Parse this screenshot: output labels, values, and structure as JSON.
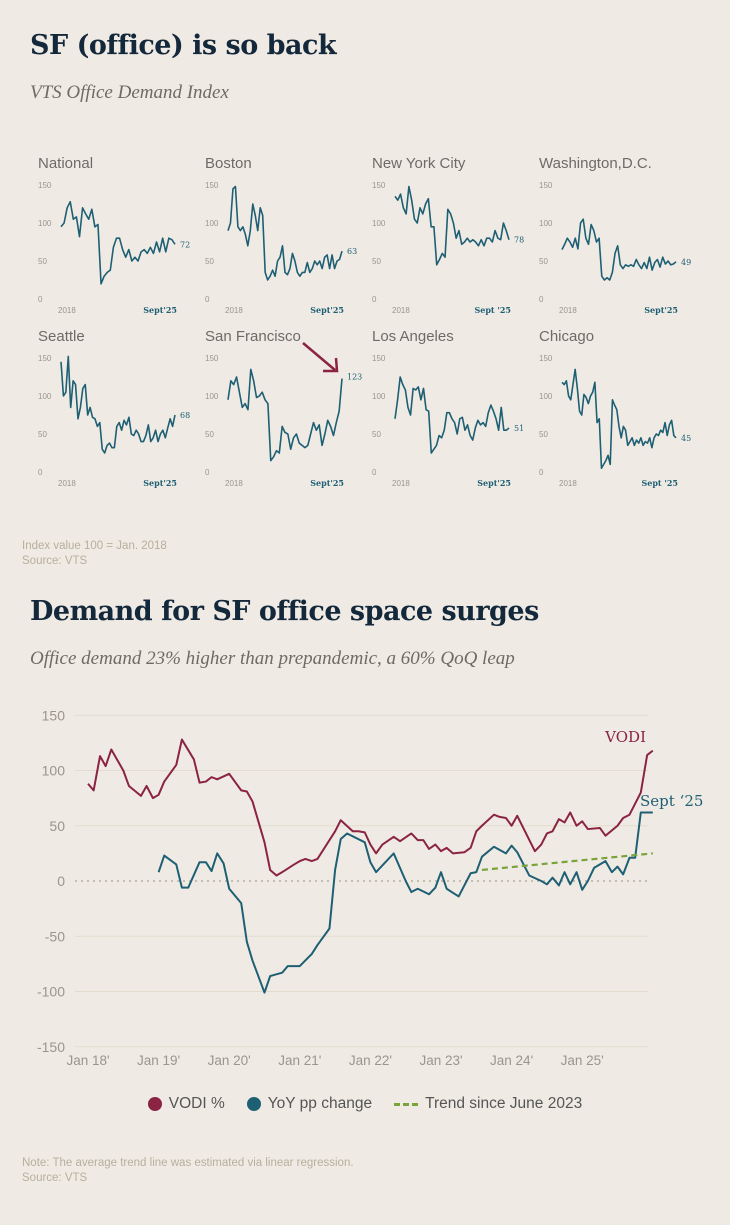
{
  "colors": {
    "teal": "#1e5f74",
    "red": "#8b2343",
    "green": "#7aa33a",
    "grid": "#e2dccf",
    "axis_text": "#9a958d"
  },
  "section1": {
    "title": "SF (office) is so back",
    "subtitle": "VTS Office Demand Index",
    "note": "Index value 100 = Jan. 2018",
    "source": "Source: VTS"
  },
  "section2": {
    "title": "Demand for SF office space surges",
    "subtitle": "Office demand 23% higher than prepandemic, a 60% QoQ leap",
    "note": "Note: The average trend line was estimated via linear regression.",
    "source": "Source: VTS"
  },
  "chart_data": [
    {
      "type": "line",
      "title": "VTS Office Demand Index (small multiples)",
      "ylim": [
        0,
        150
      ],
      "yticks": [
        150,
        100,
        50,
        0
      ],
      "x_start_label": "2018",
      "x_end_label": "Sept'25",
      "panels": [
        {
          "name": "National",
          "end_label": "72",
          "values": [
            95,
            100,
            120,
            128,
            105,
            108,
            82,
            120,
            112,
            105,
            118,
            95,
            98,
            20,
            30,
            35,
            38,
            68,
            80,
            80,
            65,
            55,
            65,
            50,
            55,
            50,
            62,
            65,
            60,
            68,
            60,
            75,
            62,
            80,
            62,
            80,
            78,
            72
          ]
        },
        {
          "name": "Boston",
          "end_label": "63",
          "values": [
            90,
            100,
            145,
            148,
            95,
            90,
            95,
            85,
            70,
            90,
            125,
            110,
            90,
            120,
            110,
            35,
            25,
            30,
            38,
            30,
            50,
            55,
            70,
            35,
            32,
            40,
            60,
            50,
            35,
            30,
            35,
            35,
            48,
            35,
            40,
            50,
            45,
            50,
            40,
            55,
            58,
            40,
            58,
            40,
            50,
            52,
            63
          ]
        },
        {
          "name": "New York City",
          "end_label": "78",
          "x_end_label": "Sept '25",
          "values": [
            135,
            130,
            138,
            120,
            112,
            148,
            130,
            105,
            100,
            120,
            112,
            125,
            132,
            95,
            95,
            45,
            52,
            60,
            55,
            118,
            112,
            100,
            80,
            90,
            72,
            75,
            80,
            75,
            78,
            75,
            70,
            78,
            70,
            80,
            80,
            75,
            90,
            80,
            78,
            100,
            90,
            78
          ]
        },
        {
          "name": "Washington,D.C.",
          "end_label": "49",
          "values": [
            65,
            72,
            80,
            75,
            68,
            80,
            66,
            100,
            105,
            80,
            72,
            98,
            90,
            75,
            80,
            30,
            25,
            28,
            25,
            35,
            60,
            70,
            45,
            40,
            45,
            43,
            45,
            43,
            52,
            45,
            40,
            48,
            40,
            55,
            38,
            48,
            52,
            42,
            55,
            46,
            50,
            45,
            46,
            49
          ]
        },
        {
          "name": "Seattle",
          "end_label": "68",
          "values": [
            145,
            100,
            105,
            152,
            85,
            120,
            115,
            70,
            85,
            110,
            115,
            75,
            85,
            72,
            70,
            60,
            65,
            30,
            25,
            35,
            38,
            32,
            32,
            60,
            65,
            55,
            68,
            62,
            72,
            50,
            48,
            55,
            50,
            40,
            40,
            48,
            62,
            40,
            45,
            55,
            40,
            50,
            55,
            45,
            58,
            70,
            60,
            75
          ]
        },
        {
          "name": "San Francisco",
          "end_label": "123",
          "highlight": true,
          "values": [
            95,
            120,
            115,
            125,
            105,
            85,
            90,
            82,
            135,
            120,
            98,
            100,
            105,
            95,
            90,
            15,
            20,
            28,
            25,
            60,
            52,
            50,
            30,
            45,
            50,
            38,
            35,
            32,
            35,
            50,
            65,
            55,
            62,
            35,
            50,
            68,
            60,
            48,
            65,
            80,
            123
          ]
        },
        {
          "name": "Los Angeles",
          "end_label": "51",
          "values": [
            70,
            95,
            125,
            115,
            108,
            85,
            75,
            110,
            108,
            112,
            95,
            110,
            82,
            80,
            25,
            30,
            35,
            48,
            45,
            55,
            78,
            78,
            70,
            65,
            50,
            70,
            72,
            55,
            62,
            48,
            42,
            58,
            68,
            62,
            65,
            60,
            78,
            88,
            80,
            70,
            55,
            85,
            55,
            55,
            58
          ]
        },
        {
          "name": "Chicago",
          "end_label": "45",
          "x_end_label": "Sept '25",
          "values": [
            118,
            115,
            120,
            100,
            95,
            115,
            135,
            110,
            80,
            75,
            102,
            98,
            90,
            100,
            105,
            118,
            65,
            70,
            5,
            10,
            15,
            22,
            10,
            95,
            88,
            82,
            60,
            45,
            60,
            55,
            35,
            40,
            45,
            35,
            42,
            38,
            45,
            35,
            40,
            38,
            45,
            32,
            45,
            50,
            48,
            55,
            52,
            65,
            48,
            62,
            68,
            48,
            45
          ]
        }
      ]
    },
    {
      "type": "line",
      "title": "Demand for SF office space surges",
      "ylim": [
        -150,
        150
      ],
      "yticks": [
        150,
        100,
        50,
        0,
        -50,
        -100,
        -150
      ],
      "xlim": [
        2018,
        2025.92
      ],
      "xticks": [
        {
          "x": 2018,
          "label": "Jan 18'"
        },
        {
          "x": 2019,
          "label": "Jan 19'"
        },
        {
          "x": 2020,
          "label": "Jan 20'"
        },
        {
          "x": 2021,
          "label": "Jan 21'"
        },
        {
          "x": 2022,
          "label": "Jan 22'"
        },
        {
          "x": 2023,
          "label": "Jan 23'"
        },
        {
          "x": 2024,
          "label": "Jan 24'"
        },
        {
          "x": 2025,
          "label": "Jan 25'"
        }
      ],
      "annotations": {
        "vodi": "VODI",
        "sept": "Sept ‘25"
      },
      "legend": [
        "VODI %",
        "YoY pp change",
        "Trend since June 2023"
      ],
      "legend_position": "bottom",
      "series": [
        {
          "name": "VODI %",
          "color": "#8b2343",
          "points": [
            [
              2018.0,
              88
            ],
            [
              2018.08,
              82
            ],
            [
              2018.17,
              113
            ],
            [
              2018.25,
              104
            ],
            [
              2018.33,
              119
            ],
            [
              2018.5,
              100
            ],
            [
              2018.58,
              86
            ],
            [
              2018.75,
              77
            ],
            [
              2018.83,
              86
            ],
            [
              2018.92,
              75
            ],
            [
              2019.0,
              78
            ],
            [
              2019.08,
              90
            ],
            [
              2019.25,
              105
            ],
            [
              2019.33,
              128
            ],
            [
              2019.5,
              110
            ],
            [
              2019.58,
              89
            ],
            [
              2019.67,
              90
            ],
            [
              2019.75,
              94
            ],
            [
              2019.83,
              92
            ],
            [
              2020.0,
              97
            ],
            [
              2020.17,
              82
            ],
            [
              2020.25,
              81
            ],
            [
              2020.33,
              72
            ],
            [
              2020.5,
              35
            ],
            [
              2020.58,
              10
            ],
            [
              2020.67,
              5
            ],
            [
              2020.75,
              8
            ],
            [
              2020.92,
              15
            ],
            [
              2021.0,
              18
            ],
            [
              2021.08,
              20
            ],
            [
              2021.17,
              18
            ],
            [
              2021.25,
              20
            ],
            [
              2021.5,
              45
            ],
            [
              2021.58,
              55
            ],
            [
              2021.75,
              45
            ],
            [
              2021.83,
              45
            ],
            [
              2021.92,
              44
            ],
            [
              2022.0,
              33
            ],
            [
              2022.08,
              25
            ],
            [
              2022.17,
              33
            ],
            [
              2022.33,
              40
            ],
            [
              2022.42,
              36
            ],
            [
              2022.58,
              43
            ],
            [
              2022.67,
              37
            ],
            [
              2022.75,
              37
            ],
            [
              2022.83,
              29
            ],
            [
              2022.92,
              33
            ],
            [
              2023.0,
              27
            ],
            [
              2023.08,
              30
            ],
            [
              2023.17,
              25
            ],
            [
              2023.33,
              26
            ],
            [
              2023.42,
              30
            ],
            [
              2023.5,
              45
            ],
            [
              2023.58,
              50
            ],
            [
              2023.75,
              60
            ],
            [
              2023.83,
              58
            ],
            [
              2023.92,
              57
            ],
            [
              2024.0,
              50
            ],
            [
              2024.08,
              59
            ],
            [
              2024.33,
              27
            ],
            [
              2024.42,
              33
            ],
            [
              2024.5,
              43
            ],
            [
              2024.58,
              45
            ],
            [
              2024.67,
              56
            ],
            [
              2024.75,
              53
            ],
            [
              2024.83,
              62
            ],
            [
              2024.92,
              50
            ],
            [
              2025.0,
              54
            ],
            [
              2025.08,
              47
            ],
            [
              2025.25,
              48
            ],
            [
              2025.33,
              41
            ],
            [
              2025.5,
              50
            ],
            [
              2025.58,
              57
            ],
            [
              2025.67,
              60
            ],
            [
              2025.83,
              80
            ],
            [
              2025.92,
              114
            ],
            [
              2026.0,
              118
            ]
          ]
        },
        {
          "name": "YoY pp change",
          "color": "#1e5f74",
          "points": [
            [
              2019.0,
              8
            ],
            [
              2019.08,
              23
            ],
            [
              2019.25,
              15
            ],
            [
              2019.33,
              -6
            ],
            [
              2019.42,
              -6
            ],
            [
              2019.58,
              17
            ],
            [
              2019.67,
              17
            ],
            [
              2019.75,
              9
            ],
            [
              2019.83,
              25
            ],
            [
              2019.92,
              16
            ],
            [
              2020.0,
              -7
            ],
            [
              2020.17,
              -20
            ],
            [
              2020.25,
              -55
            ],
            [
              2020.33,
              -72
            ],
            [
              2020.5,
              -101
            ],
            [
              2020.58,
              -86
            ],
            [
              2020.75,
              -83
            ],
            [
              2020.83,
              -77
            ],
            [
              2021.0,
              -77
            ],
            [
              2021.17,
              -66
            ],
            [
              2021.25,
              -58
            ],
            [
              2021.42,
              -43
            ],
            [
              2021.5,
              10
            ],
            [
              2021.58,
              38
            ],
            [
              2021.67,
              43
            ],
            [
              2021.92,
              35
            ],
            [
              2022.0,
              17
            ],
            [
              2022.08,
              8
            ],
            [
              2022.33,
              25
            ],
            [
              2022.5,
              0
            ],
            [
              2022.58,
              -10
            ],
            [
              2022.67,
              -7
            ],
            [
              2022.83,
              -12
            ],
            [
              2022.92,
              -6
            ],
            [
              2023.0,
              8
            ],
            [
              2023.08,
              -7
            ],
            [
              2023.25,
              -14
            ],
            [
              2023.42,
              7
            ],
            [
              2023.5,
              8
            ],
            [
              2023.58,
              22
            ],
            [
              2023.75,
              31
            ],
            [
              2023.92,
              25
            ],
            [
              2024.0,
              32
            ],
            [
              2024.08,
              26
            ],
            [
              2024.25,
              5
            ],
            [
              2024.42,
              0
            ],
            [
              2024.5,
              -3
            ],
            [
              2024.58,
              3
            ],
            [
              2024.67,
              -4
            ],
            [
              2024.75,
              8
            ],
            [
              2024.83,
              -3
            ],
            [
              2024.92,
              8
            ],
            [
              2025.0,
              -8
            ],
            [
              2025.08,
              0
            ],
            [
              2025.17,
              12
            ],
            [
              2025.33,
              18
            ],
            [
              2025.42,
              8
            ],
            [
              2025.5,
              13
            ],
            [
              2025.58,
              6
            ],
            [
              2025.67,
              21
            ],
            [
              2025.75,
              21
            ],
            [
              2025.83,
              62
            ],
            [
              2026.0,
              62
            ]
          ]
        },
        {
          "name": "Trend since June 2023",
          "color": "#7aa33a",
          "style": "dashed",
          "points": [
            [
              2023.58,
              10
            ],
            [
              2026.0,
              25
            ]
          ]
        }
      ]
    }
  ]
}
